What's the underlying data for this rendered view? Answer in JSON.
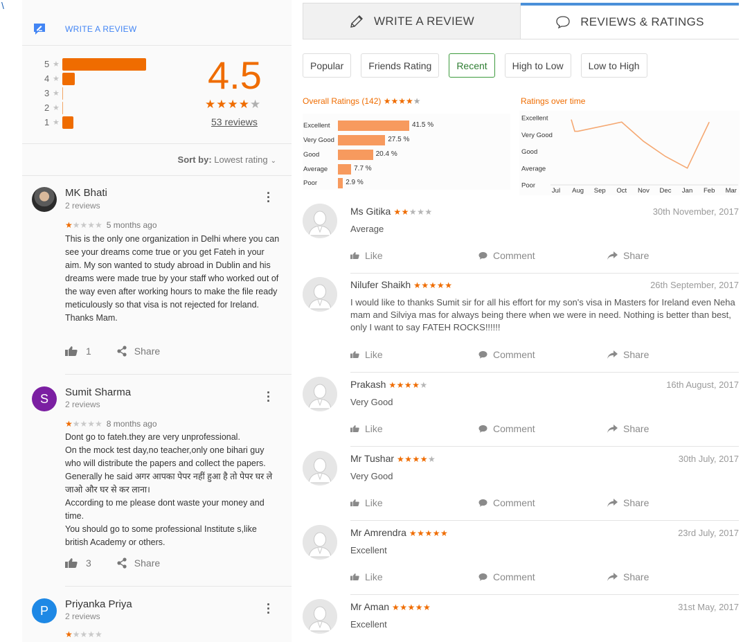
{
  "corner_mark": "\\",
  "left": {
    "write_review_label": "WRITE A REVIEW",
    "histogram": [
      {
        "stars": "5",
        "fraction": 0.85
      },
      {
        "stars": "4",
        "fraction": 0.13
      },
      {
        "stars": "3",
        "fraction": 0.0
      },
      {
        "stars": "2",
        "fraction": 0.0
      },
      {
        "stars": "1",
        "fraction": 0.11
      }
    ],
    "average": "4.5",
    "reviews_link": "53 reviews",
    "sort_label": "Sort by:",
    "sort_value": "Lowest rating",
    "reviews": [
      {
        "name": "MK Bhati",
        "sub": "2 reviews",
        "rating": 1,
        "ago": "5 months ago",
        "text": "This is the only one organization in Delhi where you can see your dreams come true or you get Fateh in your aim. My son wanted to study abroad in Dublin and his dreams were made true by your staff who worked out of the way even after working hours to make the file ready meticulously so that visa is not rejected for Ireland.\nThanks Mam.",
        "likes": "1",
        "share": "Share"
      },
      {
        "name": "Sumit Sharma",
        "initial": "S",
        "avatar_color": "#7b1fa2",
        "sub": "2 reviews",
        "rating": 1,
        "ago": "8 months ago",
        "text": "Dont go to fateh.they are very unprofessional.\nOn the mock test day,no teacher,only one bihari guy who will distribute the papers and collect the papers. Generally he said अगर आपका पेपर नहीं हुआ है तो पेपर घर ले जाओ और घर से कर लाना।\nAccording to me please dont waste your money and time.\nYou should go to some professional Institute s,like british Academy or others.",
        "likes": "3",
        "share": "Share"
      },
      {
        "name": "Priyanka Priya",
        "initial": "P",
        "avatar_color": "#1e88e5",
        "sub": "2 reviews"
      }
    ]
  },
  "right": {
    "tab_write": "WRITE A REVIEW",
    "tab_reviews": "REVIEWS & RATINGS",
    "filters": [
      "Popular",
      "Friends Rating",
      "Recent",
      "High to Low",
      "Low to High"
    ],
    "active_filter": "Recent",
    "overall_title": "Overall Ratings (142)",
    "ratings_over_time_title": "Ratings over time",
    "feed": [
      {
        "name": "Ms Gitika",
        "stars": 2,
        "date": "30th November, 2017",
        "text": "Average"
      },
      {
        "name": "Nilufer Shaikh",
        "stars": 5,
        "date": "26th September, 2017",
        "text": "I would like to thanks Sumit sir for all his effort for my son's visa in Masters for Ireland even Neha mam and Silviya mas for always being there when we were in need. Nothing is better than best, only I want to say FATEH ROCKS!!!!!!"
      },
      {
        "name": "Prakash",
        "stars": 4,
        "date": "16th August, 2017",
        "text": "Very Good"
      },
      {
        "name": "Mr Tushar",
        "stars": 4,
        "date": "30th July, 2017",
        "text": "Very Good"
      },
      {
        "name": "Mr Amrendra",
        "stars": 5,
        "date": "23rd July, 2017",
        "text": "Excellent"
      },
      {
        "name": "Mr Aman",
        "stars": 5,
        "date": "31st May, 2017",
        "text": "Excellent"
      }
    ],
    "actions": {
      "like": "Like",
      "comment": "Comment",
      "share": "Share"
    }
  },
  "colors": {
    "accent": "#ef6c00",
    "link": "#4285f4",
    "tab_active": "#4a90d9",
    "filter_active": "#2e7d32"
  },
  "chart_data": [
    {
      "type": "bar",
      "title": "Overall Ratings (142)",
      "categories": [
        "Excellent",
        "Very Good",
        "Good",
        "Average",
        "Poor"
      ],
      "values": [
        41.5,
        27.5,
        20.4,
        7.7,
        2.9
      ],
      "value_labels": [
        "41.5 %",
        "27.5 %",
        "20.4 %",
        "7.7 %",
        "2.9 %"
      ],
      "orientation": "horizontal"
    },
    {
      "type": "line",
      "title": "Ratings over time",
      "x": [
        "Jul",
        "Aug",
        "Sep",
        "Oct",
        "Nov",
        "Dec",
        "Jan",
        "Feb",
        "Mar"
      ],
      "y_categories": [
        "Excellent",
        "Very Good",
        "Good",
        "Average",
        "Poor"
      ],
      "points": [
        {
          "x": "Jul",
          "y": 4.9
        },
        {
          "x": "Jul",
          "y": 4.2
        },
        {
          "x": "Aug",
          "y": 4.2
        },
        {
          "x": "Oct",
          "y": 4.75
        },
        {
          "x": "Nov",
          "y": 3.6
        },
        {
          "x": "Dec",
          "y": 2.7
        },
        {
          "x": "Jan",
          "y": 2.0
        },
        {
          "x": "Feb",
          "y": 4.75
        }
      ]
    }
  ]
}
